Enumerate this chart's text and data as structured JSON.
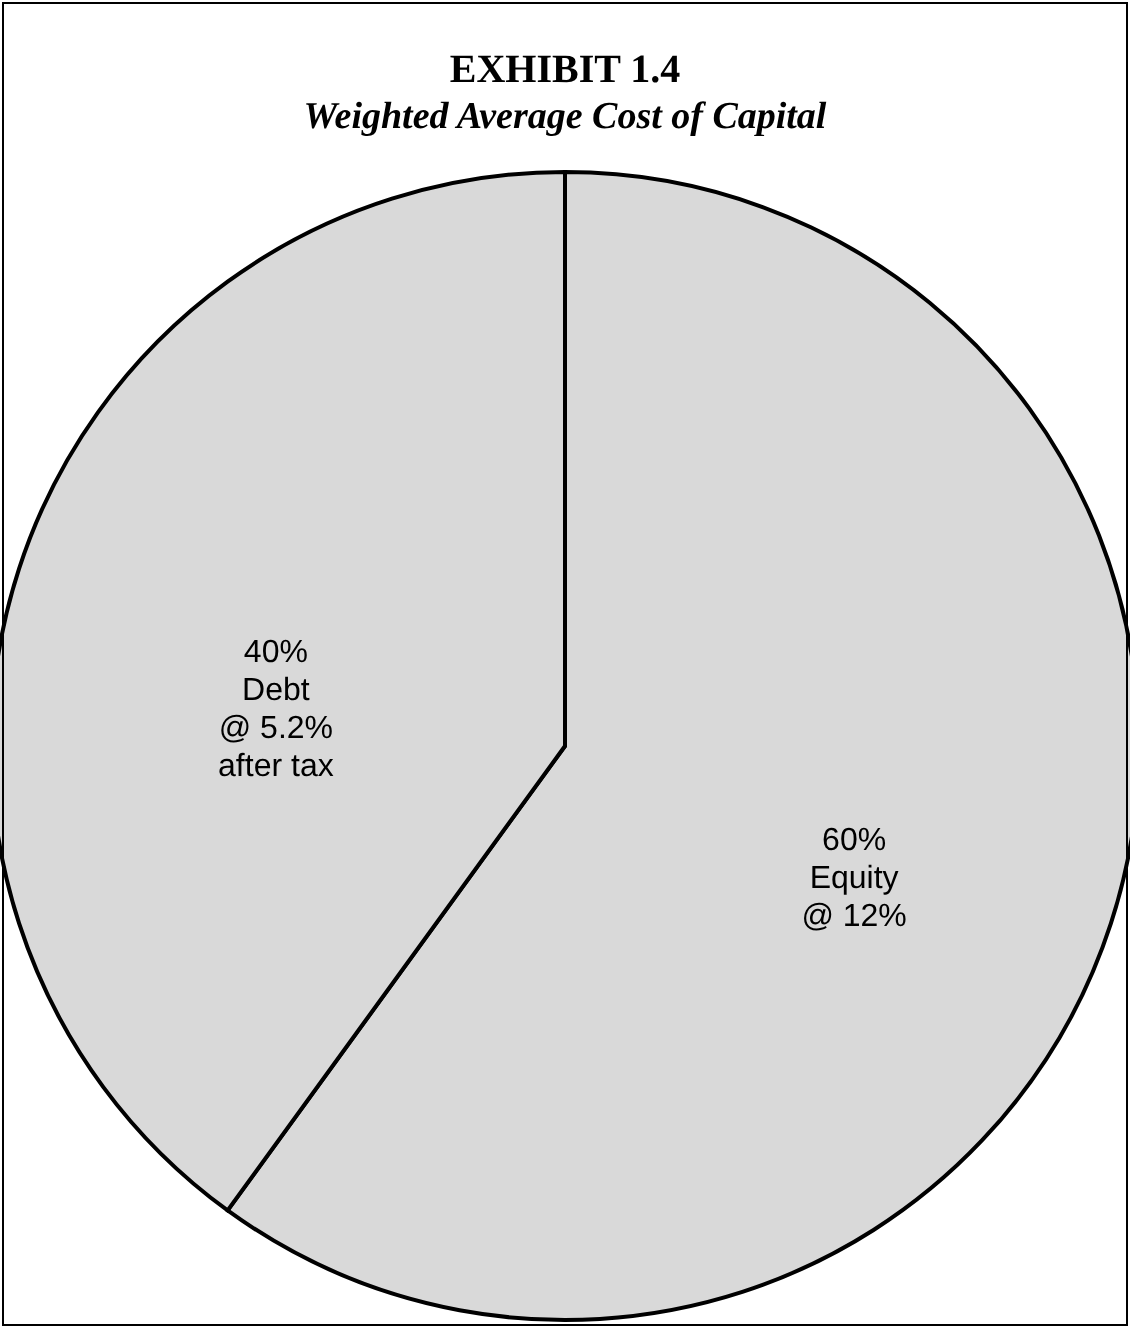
{
  "chart_data": {
    "type": "pie",
    "title": "EXHIBIT 1.4",
    "subtitle": "Weighted Average Cost of Capital",
    "categories": [
      "Equity\n@ 12%",
      "Debt\n@ 5.2%\nafter tax"
    ],
    "values": [
      60,
      40
    ],
    "value_labels": [
      "60%",
      "40%"
    ],
    "colors": [
      "#d9d9d9",
      "#d9d9d9"
    ],
    "legend": false
  }
}
